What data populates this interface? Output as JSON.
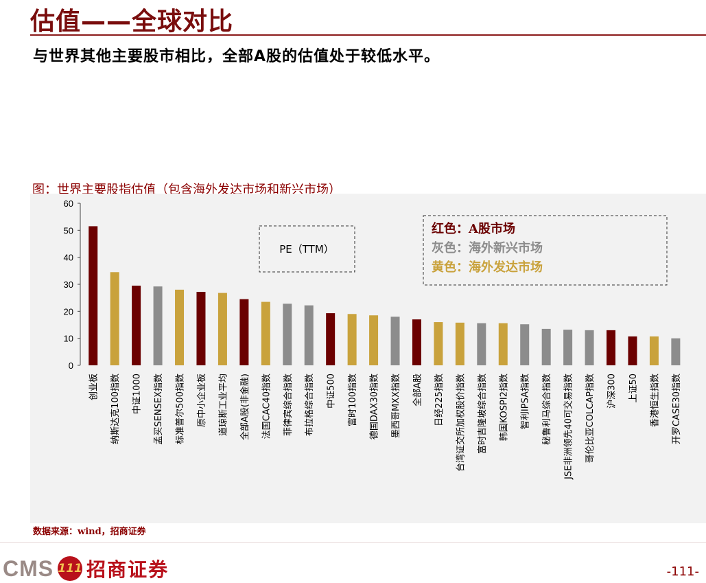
{
  "header": {
    "title": "估值——全球对比",
    "subtitle": "与世界其他主要股市相比，全部A股的估值处于较低水平。"
  },
  "figure": {
    "caption": "图：世界主要股指估值（包含海外发达市场和新兴市场）",
    "source": "数据来源：wind，招商证券"
  },
  "footer": {
    "logo_text": "CMS",
    "logo_badge": "111",
    "logo_cn": "招商证券",
    "page_number": "-111-"
  },
  "colors": {
    "a_share": "#6b0000",
    "overseas_developed": "#c9a23c",
    "overseas_emerging": "#8c8c8c"
  },
  "chart_data": {
    "type": "bar",
    "ylim": [
      0,
      60
    ],
    "yticks": [
      0,
      10,
      20,
      30,
      40,
      50,
      60
    ],
    "grid": false,
    "annotation": "PE（TTM）",
    "legend": {
      "placement": "top-right",
      "entries": [
        {
          "label": "红色：",
          "text": "A股市场",
          "group": "a_share"
        },
        {
          "label": "灰色：",
          "text": "海外新兴市场",
          "group": "overseas_emerging"
        },
        {
          "label": "黄色：",
          "text": "海外发达市场",
          "group": "overseas_developed"
        }
      ]
    },
    "categories": [
      "创业板",
      "纳斯达克100指数",
      "中证1000",
      "孟买SENSEX指数",
      "标准普尔500指数",
      "原中小企业板",
      "道琼斯工业平均",
      "全部A股(非金融)",
      "法国CAC40指数",
      "菲律宾综合指数",
      "布拉格综合指数",
      "中证500",
      "富时100指数",
      "德国DAX30指数",
      "墨西哥MXX指数",
      "全部A股",
      "日经225指数",
      "台湾证交所加权股价指数",
      "富时吉隆坡综合指数",
      "韩国KOSPI2指数",
      "智利IPSA指数",
      "秘鲁利马综合指数",
      "JSE非洲领先40可交易指数",
      "哥伦比亚COLCAP指数",
      "沪深300",
      "上证50",
      "香港恒生指数",
      "开罗CASE30指数"
    ],
    "values": [
      51.5,
      34.5,
      29.5,
      29.2,
      28.0,
      27.2,
      26.8,
      24.5,
      23.5,
      22.8,
      22.2,
      19.3,
      19.0,
      18.5,
      18.0,
      17.0,
      16.0,
      15.8,
      15.6,
      15.6,
      15.2,
      13.5,
      13.2,
      13.0,
      13.0,
      10.7,
      10.7,
      10.0
    ],
    "groups": [
      "a_share",
      "overseas_developed",
      "a_share",
      "overseas_emerging",
      "overseas_developed",
      "a_share",
      "overseas_developed",
      "a_share",
      "overseas_developed",
      "overseas_emerging",
      "overseas_emerging",
      "a_share",
      "overseas_developed",
      "overseas_developed",
      "overseas_emerging",
      "a_share",
      "overseas_developed",
      "overseas_developed",
      "overseas_emerging",
      "overseas_developed",
      "overseas_emerging",
      "overseas_emerging",
      "overseas_emerging",
      "overseas_emerging",
      "a_share",
      "a_share",
      "overseas_developed",
      "overseas_emerging"
    ]
  }
}
